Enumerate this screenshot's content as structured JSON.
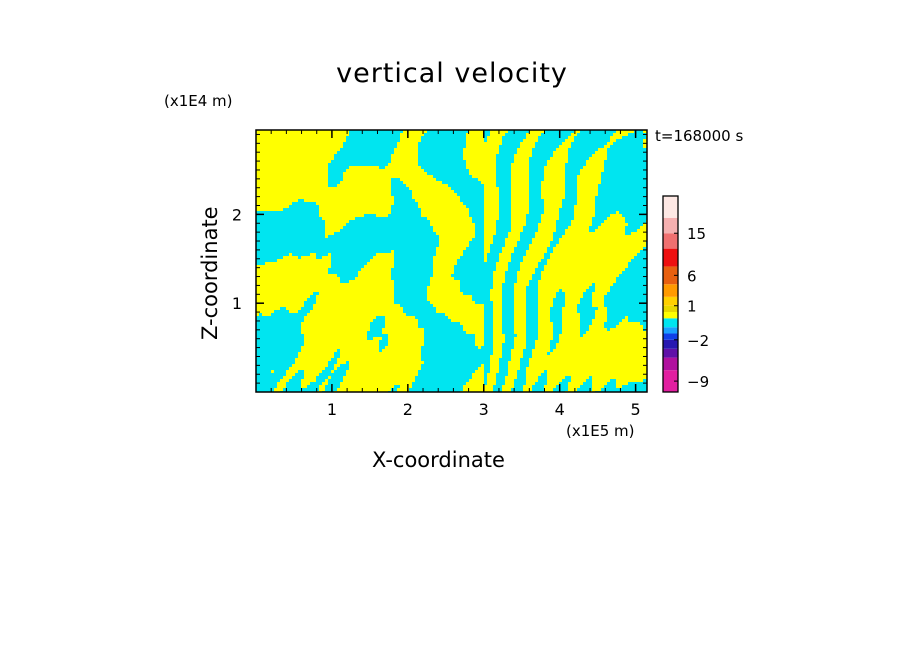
{
  "chart_data": {
    "type": "heatmap",
    "title": "vertical velocity",
    "xlabel": "X-coordinate",
    "ylabel": "Z-coordinate",
    "x_scale_label": "(x1E5 m)",
    "y_scale_label": "(x1E4 m)",
    "time_label": "t=168000 s",
    "xlim": [
      0,
      5.15
    ],
    "ylim": [
      0,
      2.95
    ],
    "x_ticks": [
      1,
      2,
      3,
      4,
      5
    ],
    "y_ticks": [
      1,
      2
    ],
    "x_tick_labels": [
      "1",
      "2",
      "3",
      "4",
      "5"
    ],
    "y_tick_labels": [
      "1",
      "2"
    ],
    "colorbar": {
      "min": -12,
      "max": 24,
      "tick_values": [
        15,
        6,
        1,
        -2,
        -9
      ],
      "tick_labels": [
        "15",
        "6",
        "1",
        "−2",
        "−9"
      ],
      "segments": [
        {
          "from": -12,
          "to": -6,
          "color": "#e21fa0"
        },
        {
          "from": -6,
          "to": -4,
          "color": "#b0109e"
        },
        {
          "from": -4,
          "to": -3,
          "color": "#6010a8"
        },
        {
          "from": -3,
          "to": -2,
          "color": "#2818b0"
        },
        {
          "from": -2,
          "to": -1.5,
          "color": "#1040e8"
        },
        {
          "from": -1.5,
          "to": -1,
          "color": "#1aa0ff"
        },
        {
          "from": -1,
          "to": 0,
          "color": "#00e5f0"
        },
        {
          "from": 0,
          "to": 0.5,
          "color": "#ffff00"
        },
        {
          "from": 0.5,
          "to": 1,
          "color": "#e8d800"
        },
        {
          "from": 1,
          "to": 2,
          "color": "#ffd000"
        },
        {
          "from": 2,
          "to": 4,
          "color": "#ff9a00"
        },
        {
          "from": 4,
          "to": 8,
          "color": "#e86010"
        },
        {
          "from": 8,
          "to": 12,
          "color": "#ee1010"
        },
        {
          "from": 12,
          "to": 15,
          "color": "#f07070"
        },
        {
          "from": 15,
          "to": 18,
          "color": "#f5b0b0"
        },
        {
          "from": 18,
          "to": 24,
          "color": "#fde8e4"
        }
      ]
    },
    "field_colors": {
      "negative": "#00e5f0",
      "positive": "#ffff00"
    }
  }
}
